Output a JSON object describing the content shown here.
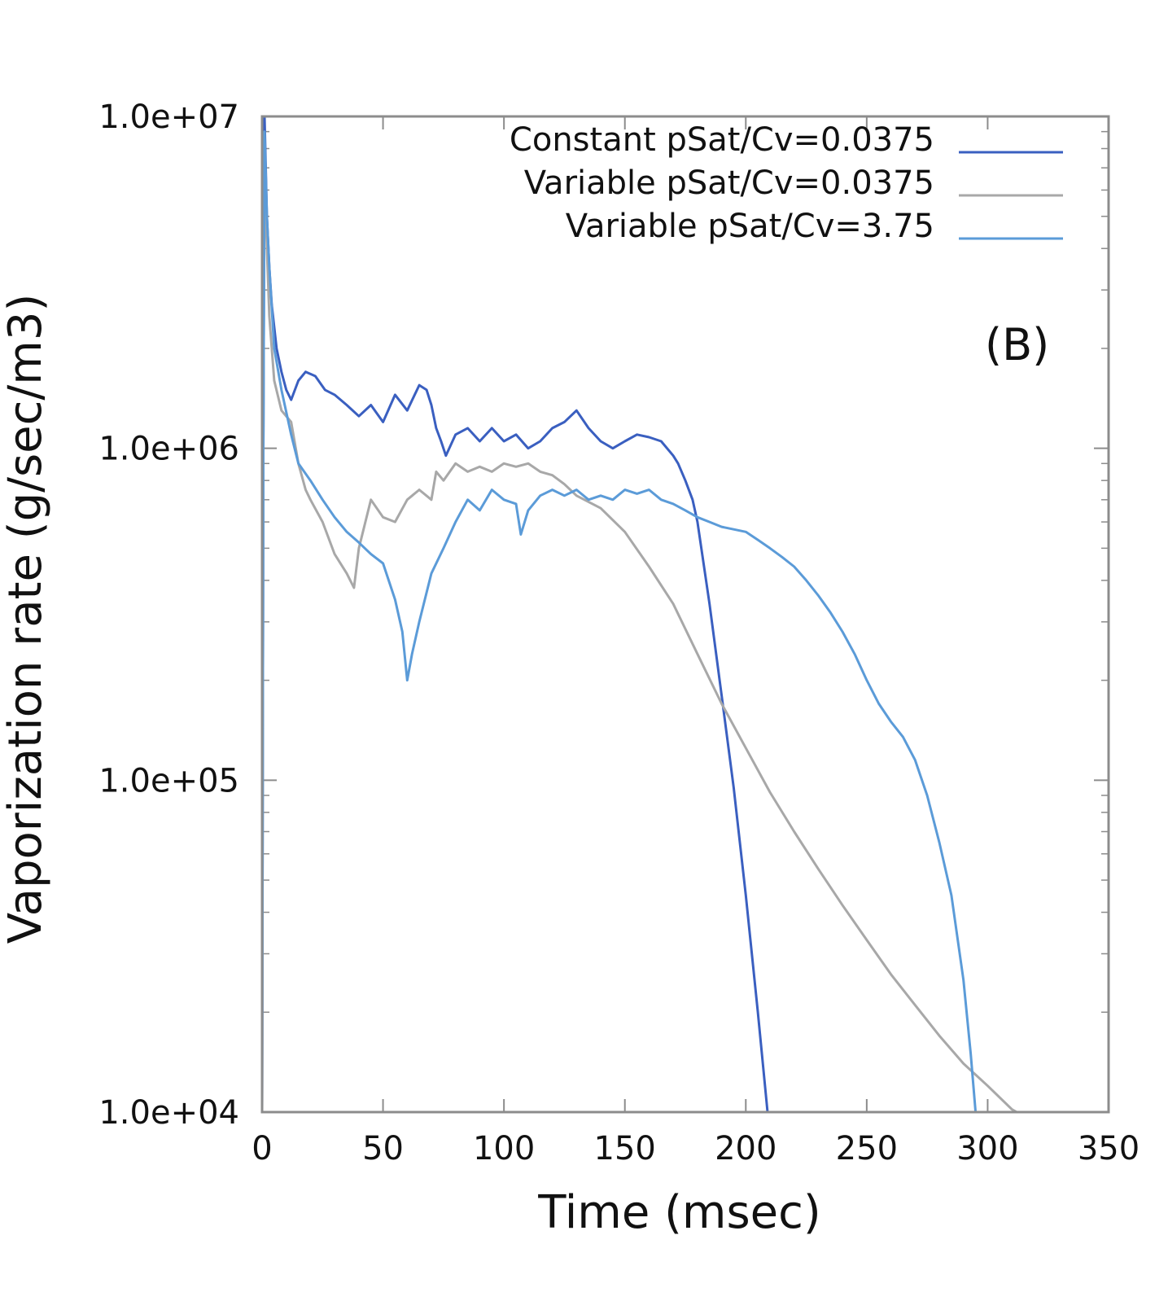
{
  "chart_data": {
    "type": "line",
    "title": "",
    "panel_label": "(B)",
    "xlabel": "Time (msec)",
    "ylabel": "Vaporization rate (g/sec/m3)",
    "xlim": [
      0,
      350
    ],
    "ylim": [
      10000,
      10000000
    ],
    "yscale": "log",
    "xticks": [
      0,
      50,
      100,
      150,
      200,
      250,
      300,
      350
    ],
    "xtick_labels": [
      "0",
      "50",
      "100",
      "150",
      "200",
      "250",
      "300",
      "350"
    ],
    "yticks": [
      10000,
      100000,
      1000000,
      10000000
    ],
    "ytick_labels": [
      "1.0e+04",
      "1.0e+05",
      "1.0e+06",
      "1.0e+07"
    ],
    "legend_position": "top-right",
    "grid": false,
    "series": [
      {
        "name": "Constant pSat/Cv=0.0375",
        "color": "#3a5fc0",
        "x": [
          0,
          0.5,
          1,
          2,
          3,
          4,
          6,
          8,
          10,
          12,
          15,
          18,
          22,
          26,
          30,
          35,
          40,
          45,
          50,
          55,
          60,
          65,
          68,
          70,
          72,
          74,
          76,
          80,
          85,
          90,
          95,
          100,
          105,
          110,
          115,
          120,
          125,
          130,
          135,
          140,
          145,
          150,
          155,
          160,
          165,
          170,
          172,
          175,
          178,
          180,
          185,
          190,
          195,
          200,
          205,
          209
        ],
        "y": [
          10000,
          1000000,
          10000000,
          5000000,
          3500000,
          2700000,
          2000000,
          1700000,
          1500000,
          1400000,
          1600000,
          1700000,
          1650000,
          1500000,
          1450000,
          1350000,
          1250000,
          1350000,
          1200000,
          1450000,
          1300000,
          1550000,
          1500000,
          1350000,
          1150000,
          1050000,
          950000,
          1100000,
          1150000,
          1050000,
          1150000,
          1050000,
          1100000,
          1000000,
          1050000,
          1150000,
          1200000,
          1300000,
          1150000,
          1050000,
          1000000,
          1050000,
          1100000,
          1080000,
          1050000,
          950000,
          900000,
          800000,
          700000,
          600000,
          340000,
          180000,
          95000,
          45000,
          20000,
          10000
        ]
      },
      {
        "name": "Variable pSat/Cv=0.0375",
        "color": "#a8a8a8",
        "x": [
          0,
          0.5,
          1,
          2,
          3,
          5,
          8,
          12,
          15,
          18,
          20,
          25,
          30,
          35,
          38,
          40,
          45,
          50,
          55,
          60,
          65,
          70,
          72,
          75,
          80,
          85,
          90,
          95,
          100,
          105,
          110,
          115,
          120,
          125,
          130,
          140,
          150,
          160,
          170,
          180,
          190,
          200,
          210,
          220,
          230,
          240,
          250,
          260,
          270,
          280,
          290,
          300,
          310,
          312
        ],
        "y": [
          10000,
          1000000,
          8000000,
          4000000,
          2500000,
          1600000,
          1300000,
          1200000,
          900000,
          750000,
          700000,
          600000,
          480000,
          420000,
          380000,
          500000,
          700000,
          620000,
          600000,
          700000,
          750000,
          700000,
          850000,
          800000,
          900000,
          850000,
          880000,
          850000,
          900000,
          880000,
          900000,
          850000,
          830000,
          780000,
          720000,
          660000,
          560000,
          440000,
          340000,
          240000,
          170000,
          125000,
          92000,
          70000,
          54000,
          42000,
          33000,
          26000,
          21000,
          17000,
          14000,
          12000,
          10200,
          10000
        ]
      },
      {
        "name": "Variable pSat/Cv=3.75",
        "color": "#5b9bd8",
        "x": [
          0,
          0.5,
          1,
          2,
          3,
          5,
          8,
          12,
          15,
          20,
          25,
          30,
          35,
          40,
          45,
          50,
          55,
          58,
          60,
          62,
          65,
          70,
          75,
          80,
          85,
          90,
          95,
          100,
          105,
          107,
          110,
          115,
          120,
          125,
          130,
          135,
          140,
          145,
          150,
          155,
          160,
          165,
          170,
          175,
          180,
          185,
          190,
          195,
          200,
          205,
          210,
          215,
          220,
          225,
          230,
          235,
          240,
          245,
          250,
          255,
          260,
          265,
          270,
          275,
          280,
          285,
          290,
          293,
          295
        ],
        "y": [
          10000,
          1000000,
          9000000,
          5000000,
          3500000,
          2000000,
          1500000,
          1100000,
          900000,
          800000,
          700000,
          620000,
          560000,
          520000,
          480000,
          450000,
          350000,
          280000,
          200000,
          240000,
          300000,
          420000,
          500000,
          600000,
          700000,
          650000,
          750000,
          700000,
          680000,
          550000,
          650000,
          720000,
          750000,
          720000,
          750000,
          700000,
          720000,
          700000,
          750000,
          730000,
          750000,
          700000,
          680000,
          650000,
          620000,
          600000,
          580000,
          570000,
          560000,
          530000,
          500000,
          470000,
          440000,
          400000,
          360000,
          320000,
          280000,
          240000,
          200000,
          170000,
          150000,
          135000,
          115000,
          90000,
          65000,
          45000,
          25000,
          15000,
          10000
        ]
      }
    ]
  }
}
